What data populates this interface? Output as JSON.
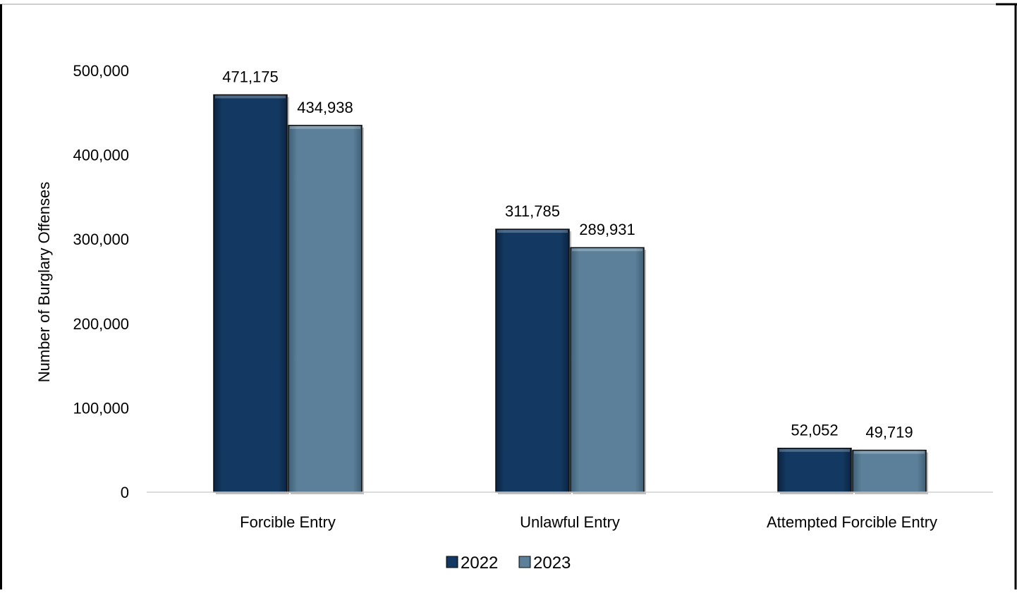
{
  "chart_data": {
    "type": "bar",
    "title": "",
    "xlabel": "",
    "ylabel": "Number of Burglary Offenses",
    "ylim": [
      0,
      500000
    ],
    "yticks": [
      0,
      100000,
      200000,
      300000,
      400000,
      500000
    ],
    "ytick_labels": [
      "0",
      "100,000",
      "200,000",
      "300,000",
      "400,000",
      "500,000"
    ],
    "categories": [
      "Forcible Entry",
      "Unlawful Entry",
      "Attempted Forcible Entry"
    ],
    "series": [
      {
        "name": "2022",
        "values": [
          471175,
          311785,
          52052
        ],
        "labels": [
          "471,175",
          "311,785",
          "52,052"
        ],
        "color": "#133962"
      },
      {
        "name": "2023",
        "values": [
          434938,
          289931,
          49719
        ],
        "labels": [
          "434,938",
          "289,931",
          "49,719"
        ],
        "color": "#5c8099"
      }
    ],
    "grid": false,
    "legend_position": "bottom-center"
  }
}
